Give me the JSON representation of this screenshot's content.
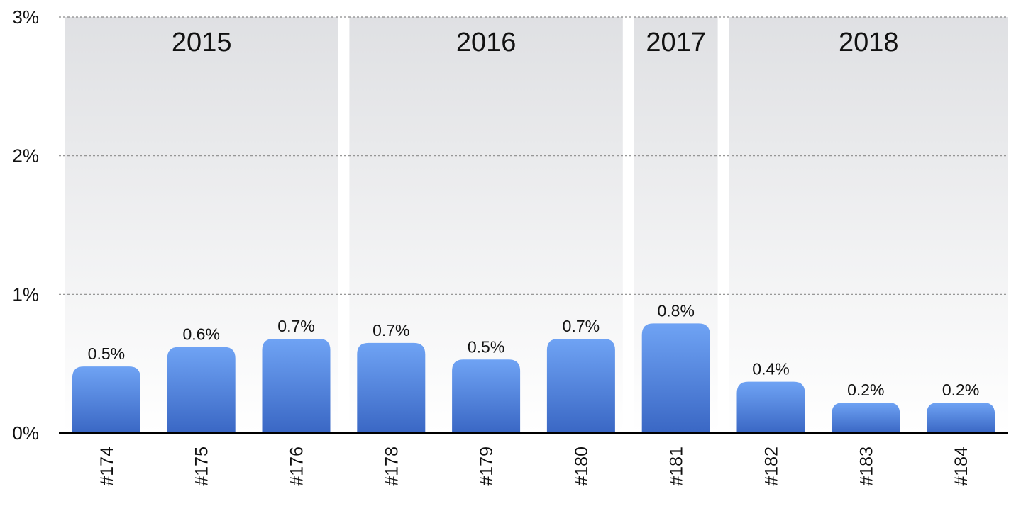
{
  "chart_data": {
    "type": "bar",
    "title": "",
    "xlabel": "",
    "ylabel": "",
    "ylim": [
      0,
      3
    ],
    "y_tick_labels": [
      "0%",
      "1%",
      "2%",
      "3%"
    ],
    "y_tick_values": [
      0,
      1,
      2,
      3
    ],
    "grid": true,
    "categories": [
      "#174",
      "#175",
      "#176",
      "#178",
      "#179",
      "#180",
      "#181",
      "#182",
      "#183",
      "#184"
    ],
    "values": [
      0.48,
      0.62,
      0.68,
      0.65,
      0.53,
      0.68,
      0.79,
      0.37,
      0.22,
      0.22
    ],
    "data_labels": [
      "0.5%",
      "0.6%",
      "0.7%",
      "0.7%",
      "0.5%",
      "0.7%",
      "0.8%",
      "0.4%",
      "0.2%",
      "0.2%"
    ],
    "groups": [
      {
        "label": "2015",
        "categories": [
          "#174",
          "#175",
          "#176"
        ]
      },
      {
        "label": "2016",
        "categories": [
          "#178",
          "#179",
          "#180"
        ]
      },
      {
        "label": "2017",
        "categories": [
          "#181"
        ]
      },
      {
        "label": "2018",
        "categories": [
          "#182",
          "#183",
          "#184"
        ]
      }
    ],
    "colors": {
      "bar_top": "#6fa3f4",
      "bar_bottom": "#3a67c4",
      "band_top": "#dfe0e3",
      "band_bottom": "#ffffff",
      "grid": "#8a8a8a",
      "axis": "#000000"
    }
  }
}
